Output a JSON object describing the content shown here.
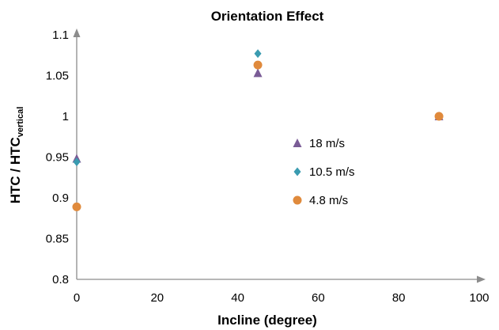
{
  "chart_data": {
    "type": "scatter",
    "title": "Orientation Effect",
    "xlabel": "Incline (degree)",
    "ylabel": {
      "main": "HTC / HTC",
      "sub": "vertical"
    },
    "xlim": [
      0,
      100
    ],
    "ylim": [
      0.8,
      1.1
    ],
    "xticks": [
      "0",
      "20",
      "40",
      "60",
      "80",
      "100"
    ],
    "yticks": [
      "0.8",
      "0.85",
      "0.9",
      "0.95",
      "1",
      "1.05",
      "1.1"
    ],
    "xtick_values": [
      0,
      20,
      40,
      60,
      80,
      100
    ],
    "ytick_values": [
      0.8,
      0.85,
      0.9,
      0.95,
      1.0,
      1.05,
      1.1
    ],
    "grid": false,
    "legend_position": "center-right",
    "series": [
      {
        "name": "18 m/s",
        "marker": "triangle-icon",
        "color": "#7a5c96",
        "points": [
          {
            "x": 0,
            "y": 0.948
          },
          {
            "x": 45,
            "y": 1.053
          },
          {
            "x": 90,
            "y": 1.0
          }
        ]
      },
      {
        "name": "10.5 m/s",
        "marker": "diamond-icon",
        "color": "#3a9bb0",
        "points": [
          {
            "x": 0,
            "y": 0.944
          },
          {
            "x": 45,
            "y": 1.077
          },
          {
            "x": 90,
            "y": 1.0
          }
        ]
      },
      {
        "name": "4.8 m/s",
        "marker": "circle-icon",
        "color": "#e08a3c",
        "points": [
          {
            "x": 0,
            "y": 0.889
          },
          {
            "x": 45,
            "y": 1.063
          },
          {
            "x": 90,
            "y": 1.0
          }
        ]
      }
    ]
  }
}
